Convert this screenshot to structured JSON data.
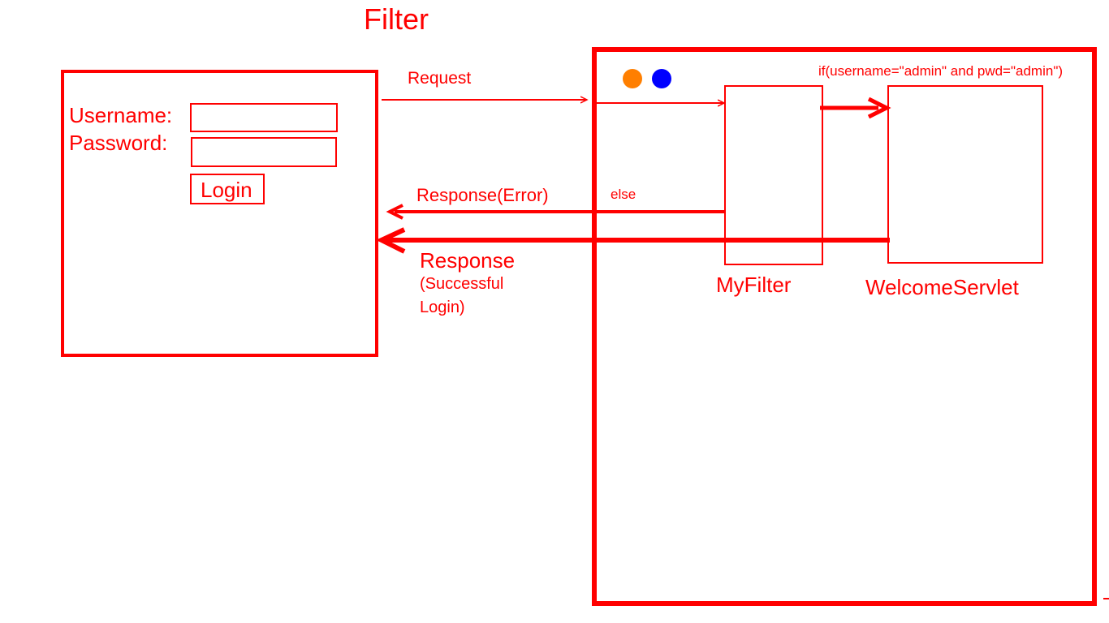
{
  "title": "Filter",
  "client": {
    "username_label": "Username:",
    "password_label": "Password:",
    "username_value": "",
    "password_value": "",
    "login_button": "Login"
  },
  "arrows": {
    "request_label": "Request",
    "error_label": "Response(Error)",
    "else_label": "else",
    "success_label_1": "Response",
    "success_label_2": "(Successful",
    "success_label_3": "Login)"
  },
  "server": {
    "condition": "if(username=\"admin\" and pwd=\"admin\")",
    "filter_name": "MyFilter",
    "servlet_name": "WelcomeServlet"
  },
  "colors": {
    "primary": "#ff0000",
    "dot_1": "#ff7f00",
    "dot_2": "#0000ff"
  }
}
